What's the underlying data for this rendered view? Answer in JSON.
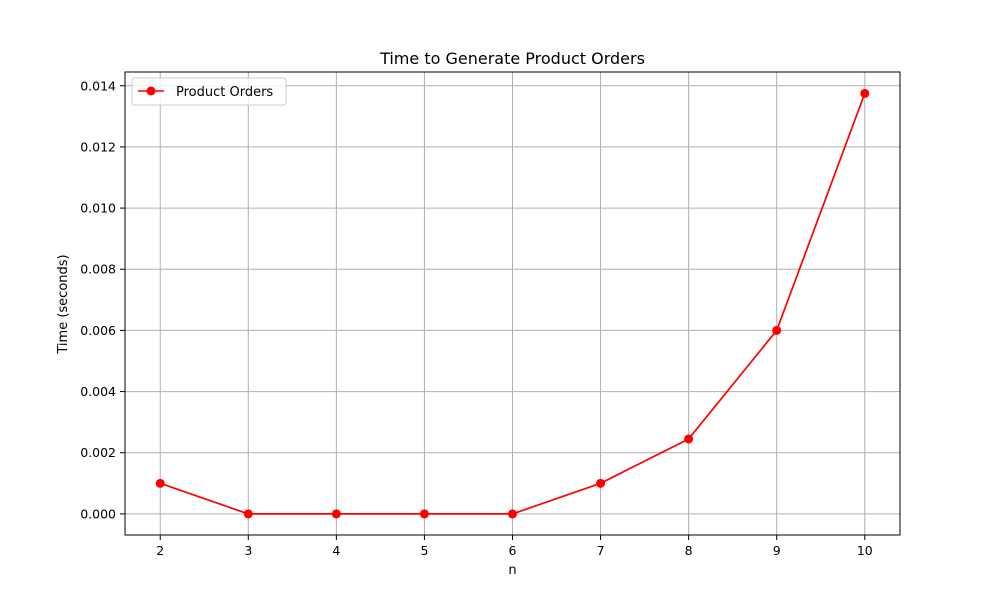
{
  "chart_data": {
    "type": "line",
    "title": "Time to Generate Product Orders",
    "xlabel": "n",
    "ylabel": "Time (seconds)",
    "x": [
      2,
      3,
      4,
      5,
      6,
      7,
      8,
      9,
      10
    ],
    "x_ticks": [
      "2",
      "3",
      "4",
      "5",
      "6",
      "7",
      "8",
      "9",
      "10"
    ],
    "y_ticks": [
      "0.000",
      "0.002",
      "0.004",
      "0.006",
      "0.008",
      "0.010",
      "0.012",
      "0.014"
    ],
    "y_tick_values": [
      0.0,
      0.002,
      0.004,
      0.006,
      0.008,
      0.01,
      0.012,
      0.014
    ],
    "xlim": [
      1.6,
      10.4
    ],
    "ylim": [
      -0.00069,
      0.01445
    ],
    "grid": true,
    "legend_placement": "upper-left",
    "series": [
      {
        "name": "Product Orders",
        "color": "#ff0000",
        "marker": "circle",
        "values": [
          0.001,
          0.0,
          0.0,
          0.0,
          0.0,
          0.001,
          0.00245,
          0.006,
          0.01375
        ]
      }
    ]
  }
}
